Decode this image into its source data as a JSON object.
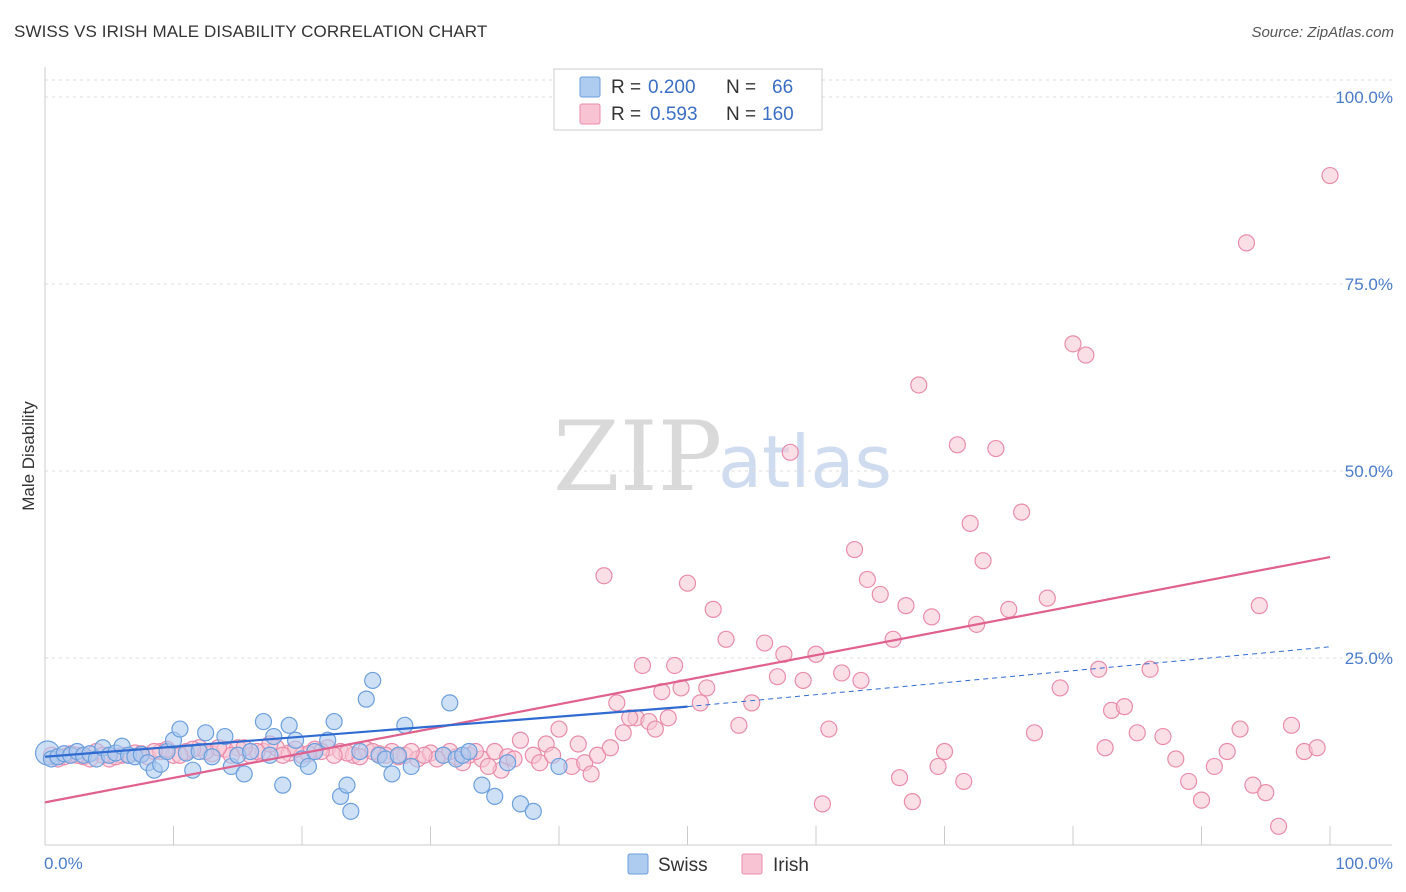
{
  "header": {
    "title": "SWISS VS IRISH MALE DISABILITY CORRELATION CHART",
    "source": "Source: ZipAtlas.com"
  },
  "watermark": {
    "zip": "ZIP",
    "atlas": "atlas"
  },
  "legend_top": {
    "rows": [
      {
        "r_label": "R =",
        "r_value": "0.200",
        "n_label": "N =",
        "n_value": "66"
      },
      {
        "r_label": "R =",
        "r_value": "0.593",
        "n_label": "N =",
        "n_value": "160"
      }
    ]
  },
  "legend_bottom": {
    "swiss": "Swiss",
    "irish": "Irish"
  },
  "colors": {
    "swiss_fill": "#aecbf0",
    "swiss_stroke": "#6c9fdd",
    "swiss_line": "#2f6bd0",
    "irish_fill": "#f8c4d4",
    "irish_stroke": "#e98cab",
    "irish_line": "#e0608e",
    "tick_text": "#4a7cc9",
    "grid": "#dddddd"
  },
  "chart_data": {
    "type": "scatter",
    "title": "SWISS VS IRISH MALE DISABILITY CORRELATION CHART",
    "xlabel": "",
    "ylabel": "Male Disability",
    "xlim": [
      0,
      100
    ],
    "ylim": [
      0,
      100
    ],
    "x_tick_labels": [
      "0.0%",
      "100.0%"
    ],
    "y_tick_labels": [
      "25.0%",
      "50.0%",
      "75.0%",
      "100.0%"
    ],
    "y_ticks": [
      25,
      50,
      75,
      100
    ],
    "grid": true,
    "legend_position": "top-center",
    "series": [
      {
        "name": "Swiss",
        "r": 0.2,
        "n": 66,
        "trend": {
          "x0": 0,
          "y0": 11.8,
          "x1": 50,
          "y1": 18.5,
          "dashed_to_x": 100,
          "dashed_to_y": 26.5
        },
        "points": [
          [
            0.2,
            12.3
          ],
          [
            0.5,
            11.5
          ],
          [
            1,
            11.8
          ],
          [
            1.5,
            12.2
          ],
          [
            2,
            12.0
          ],
          [
            2.5,
            12.5
          ],
          [
            3,
            12.0
          ],
          [
            3.5,
            12.2
          ],
          [
            4,
            11.5
          ],
          [
            4.5,
            13.0
          ],
          [
            5,
            12.0
          ],
          [
            5.5,
            12.3
          ],
          [
            6,
            13.2
          ],
          [
            6.5,
            12.0
          ],
          [
            7,
            11.8
          ],
          [
            7.5,
            12.1
          ],
          [
            8,
            11.0
          ],
          [
            8.5,
            10.0
          ],
          [
            9,
            10.8
          ],
          [
            9.5,
            12.5
          ],
          [
            10,
            14.0
          ],
          [
            10.5,
            15.5
          ],
          [
            11,
            12.3
          ],
          [
            11.5,
            10.0
          ],
          [
            12,
            12.5
          ],
          [
            12.5,
            15.0
          ],
          [
            13,
            11.8
          ],
          [
            14,
            14.5
          ],
          [
            14.5,
            10.5
          ],
          [
            15,
            12.0
          ],
          [
            15.5,
            9.5
          ],
          [
            16,
            12.5
          ],
          [
            17,
            16.5
          ],
          [
            17.5,
            12.0
          ],
          [
            17.8,
            14.5
          ],
          [
            18.5,
            8.0
          ],
          [
            19,
            16.0
          ],
          [
            19.5,
            14.0
          ],
          [
            20,
            11.5
          ],
          [
            20.5,
            10.5
          ],
          [
            21,
            12.5
          ],
          [
            22,
            14.0
          ],
          [
            22.5,
            16.5
          ],
          [
            23,
            6.5
          ],
          [
            23.5,
            8.0
          ],
          [
            23.8,
            4.5
          ],
          [
            24.5,
            12.5
          ],
          [
            25,
            19.5
          ],
          [
            25.5,
            22.0
          ],
          [
            26,
            12.0
          ],
          [
            26.5,
            11.5
          ],
          [
            27,
            9.5
          ],
          [
            28,
            16.0
          ],
          [
            28.5,
            10.5
          ],
          [
            27.5,
            12.0
          ],
          [
            31,
            12.0
          ],
          [
            31.5,
            19.0
          ],
          [
            32,
            11.5
          ],
          [
            32.5,
            12.0
          ],
          [
            33,
            12.5
          ],
          [
            34,
            8.0
          ],
          [
            35,
            6.5
          ],
          [
            36,
            11.0
          ],
          [
            37,
            5.5
          ],
          [
            38,
            4.5
          ],
          [
            40,
            10.5
          ]
        ]
      },
      {
        "name": "Irish",
        "r": 0.593,
        "n": 160,
        "trend": {
          "x0": 0,
          "y0": 5.7,
          "x1": 100,
          "y1": 38.5
        },
        "points": [
          [
            0.5,
            12.0
          ],
          [
            1,
            11.5
          ],
          [
            2,
            12.2
          ],
          [
            3,
            11.8
          ],
          [
            4,
            12.5
          ],
          [
            5,
            11.5
          ],
          [
            6,
            12.0
          ],
          [
            7,
            12.3
          ],
          [
            8,
            11.8
          ],
          [
            9,
            12.5
          ],
          [
            10,
            12.0
          ],
          [
            11,
            12.5
          ],
          [
            12,
            13.0
          ],
          [
            13,
            12.2
          ],
          [
            14,
            12.8
          ],
          [
            15,
            13.0
          ],
          [
            16,
            12.0
          ],
          [
            17,
            12.5
          ],
          [
            18,
            13.0
          ],
          [
            19,
            12.3
          ],
          [
            20,
            12.0
          ],
          [
            21,
            12.8
          ],
          [
            22,
            13.0
          ],
          [
            23,
            12.5
          ],
          [
            24,
            12.0
          ],
          [
            25,
            12.8
          ],
          [
            26,
            12.2
          ],
          [
            27,
            12.5
          ],
          [
            28,
            12.0
          ],
          [
            29,
            11.5
          ],
          [
            30,
            12.3
          ],
          [
            31,
            12.0
          ],
          [
            32,
            11.8
          ],
          [
            33,
            12.0
          ],
          [
            34,
            11.5
          ],
          [
            35,
            12.5
          ],
          [
            36,
            11.8
          ],
          [
            37,
            14.0
          ],
          [
            38,
            12.0
          ],
          [
            39,
            13.5
          ],
          [
            40,
            15.5
          ],
          [
            41,
            10.5
          ],
          [
            42,
            11.0
          ],
          [
            43,
            12.0
          ],
          [
            44,
            13.0
          ],
          [
            45,
            15.0
          ],
          [
            46,
            17.0
          ],
          [
            47,
            16.5
          ],
          [
            48,
            20.5
          ],
          [
            49,
            24.0
          ],
          [
            50,
            35.0
          ],
          [
            51,
            19.0
          ],
          [
            52,
            31.5
          ],
          [
            53,
            27.5
          ],
          [
            54,
            16.0
          ],
          [
            55,
            19.0
          ],
          [
            56,
            27.0
          ],
          [
            57,
            22.5
          ],
          [
            58,
            52.5
          ],
          [
            59,
            22.0
          ],
          [
            60,
            25.5
          ],
          [
            61,
            15.5
          ],
          [
            62,
            23.0
          ],
          [
            63,
            39.5
          ],
          [
            64,
            35.5
          ],
          [
            65,
            33.5
          ],
          [
            66,
            27.5
          ],
          [
            67,
            32.0
          ],
          [
            68,
            61.5
          ],
          [
            69,
            30.5
          ],
          [
            70,
            12.5
          ],
          [
            71,
            53.5
          ],
          [
            72,
            43.0
          ],
          [
            73,
            38.0
          ],
          [
            74,
            53.0
          ],
          [
            75,
            31.5
          ],
          [
            76,
            44.5
          ],
          [
            77,
            15.0
          ],
          [
            78,
            33.0
          ],
          [
            79,
            21.0
          ],
          [
            80,
            67.0
          ],
          [
            81,
            65.5
          ],
          [
            82,
            23.5
          ],
          [
            83,
            18.0
          ],
          [
            84,
            18.5
          ],
          [
            85,
            15.0
          ],
          [
            86,
            23.5
          ],
          [
            87,
            14.5
          ],
          [
            88,
            11.5
          ],
          [
            89,
            8.5
          ],
          [
            90,
            6.0
          ],
          [
            91,
            10.5
          ],
          [
            92,
            12.5
          ],
          [
            93,
            15.5
          ],
          [
            94,
            8.0
          ],
          [
            95,
            7.0
          ],
          [
            96,
            2.5
          ],
          [
            97,
            16.0
          ],
          [
            98,
            12.5
          ],
          [
            99,
            13.0
          ],
          [
            100,
            89.5
          ],
          [
            93.5,
            80.5
          ],
          [
            94.5,
            32.0
          ],
          [
            72.5,
            29.5
          ],
          [
            82.5,
            13.0
          ],
          [
            63.5,
            22.0
          ],
          [
            57.5,
            25.5
          ],
          [
            51.5,
            21.0
          ],
          [
            46.5,
            24.0
          ],
          [
            44.5,
            19.0
          ],
          [
            43.5,
            36.0
          ],
          [
            45.5,
            17.0
          ],
          [
            47.5,
            15.5
          ],
          [
            48.5,
            17.0
          ],
          [
            49.5,
            21.0
          ],
          [
            38.5,
            11.0
          ],
          [
            39.5,
            12.0
          ],
          [
            41.5,
            13.5
          ],
          [
            42.5,
            9.5
          ],
          [
            36.5,
            11.5
          ],
          [
            35.5,
            10.0
          ],
          [
            34.5,
            10.5
          ],
          [
            33.5,
            12.5
          ],
          [
            32.5,
            11.0
          ],
          [
            31.5,
            12.5
          ],
          [
            30.5,
            11.5
          ],
          [
            29.5,
            12.0
          ],
          [
            28.5,
            12.5
          ],
          [
            27.5,
            11.8
          ],
          [
            26.5,
            12.0
          ],
          [
            25.5,
            12.5
          ],
          [
            24.5,
            11.8
          ],
          [
            23.5,
            12.3
          ],
          [
            22.5,
            12.0
          ],
          [
            21.5,
            12.5
          ],
          [
            20.5,
            12.2
          ],
          [
            19.5,
            12.8
          ],
          [
            18.5,
            12.0
          ],
          [
            17.5,
            13.5
          ],
          [
            16.5,
            12.5
          ],
          [
            15.5,
            13.0
          ],
          [
            14.5,
            12.0
          ],
          [
            13.5,
            13.0
          ],
          [
            12.5,
            12.5
          ],
          [
            11.5,
            12.8
          ],
          [
            10.5,
            12.0
          ],
          [
            9.5,
            12.8
          ],
          [
            8.5,
            12.5
          ],
          [
            7.5,
            12.2
          ],
          [
            6.5,
            12.0
          ],
          [
            5.5,
            11.8
          ],
          [
            4.5,
            12.0
          ],
          [
            3.5,
            11.5
          ],
          [
            2.5,
            12.0
          ],
          [
            1.5,
            11.8
          ],
          [
            60.5,
            5.5
          ],
          [
            66.5,
            9.0
          ],
          [
            67.5,
            5.8
          ],
          [
            69.5,
            10.5
          ],
          [
            71.5,
            8.5
          ]
        ]
      }
    ]
  }
}
